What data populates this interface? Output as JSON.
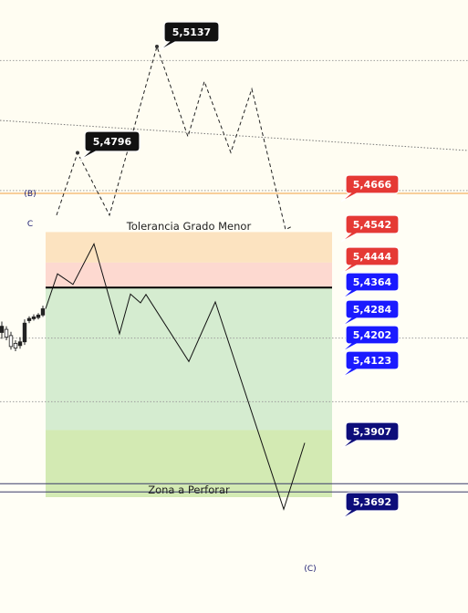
{
  "chart_data": {
    "type": "line",
    "y_axis": {
      "scale": "price",
      "range": [
        5.352,
        5.525
      ]
    },
    "price_labels": [
      {
        "value": "5,4666",
        "color": "#e53935"
      },
      {
        "value": "5,4542",
        "color": "#e53935"
      },
      {
        "value": "5,4444",
        "color": "#e53935"
      },
      {
        "value": "5,4364",
        "color": "#1a1aff"
      },
      {
        "value": "5,4284",
        "color": "#1a1aff"
      },
      {
        "value": "5,4202",
        "color": "#1a1aff"
      },
      {
        "value": "5,4123",
        "color": "#1a1aff"
      },
      {
        "value": "5,3907",
        "color": "#0d0d7a"
      },
      {
        "value": "5,3692",
        "color": "#0d0d7a"
      }
    ],
    "peak_labels": [
      {
        "value": "5,5137",
        "y": 5.5137
      },
      {
        "value": "5,4796",
        "y": 5.4796
      }
    ],
    "zones": [
      {
        "name": "Tolerancia Grado Menor",
        "from": 5.4542,
        "to": 5.4444,
        "color": "#fce3c0"
      },
      {
        "name": "",
        "from": 5.4444,
        "to": 5.4364,
        "color": "#fdd9d0"
      },
      {
        "name": "",
        "from": 5.4364,
        "to": 5.3907,
        "color": "#d5ecd0"
      },
      {
        "name": "Zona a Perforar",
        "from": 5.3907,
        "to": 5.3692,
        "color": "#d3eab3"
      }
    ],
    "wave_labels": [
      "(B)",
      "C",
      "(C)"
    ],
    "horizontal_lines": [
      {
        "y": 5.5092,
        "color": "#9e9e9e",
        "style": "dotted"
      },
      {
        "y": 5.4666,
        "color": "#f0a040",
        "style": "solid"
      },
      {
        "y": 5.4675,
        "color": "#9e9e9e",
        "style": "dotted"
      },
      {
        "y": 5.4364,
        "color": "#000000",
        "style": "solid-thick"
      },
      {
        "y": 5.4202,
        "color": "#9e9e9e",
        "style": "dotted"
      },
      {
        "y": 5.3998,
        "color": "#9e9e9e",
        "style": "dotted"
      },
      {
        "y": 5.3735,
        "color": "#3a3a6a",
        "style": "solid"
      },
      {
        "y": 5.3709,
        "color": "#3a3a6a",
        "style": "solid"
      }
    ],
    "solid_path": [
      [
        5.4296,
        5.4444
      ],
      [
        5.4408,
        5.4504
      ],
      [
        5.4374,
        5.4216
      ],
      [
        5.4343,
        5.4315
      ],
      [
        5.4271,
        5.4242
      ],
      [
        5.4318,
        5.4127
      ],
      [
        5.3971,
        5.3653
      ],
      [
        5.3866,
        5.386
      ]
    ],
    "projected_path": [
      [
        5.4596,
        5.4796
      ],
      [
        5.4596,
        5.5137
      ],
      [
        5.4848,
        5.5025
      ],
      [
        5.4797,
        5.5001
      ],
      [
        5.4824,
        5.455
      ]
    ]
  }
}
